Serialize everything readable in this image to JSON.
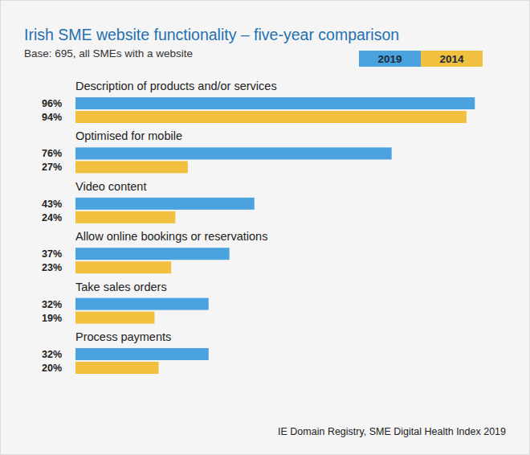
{
  "chart_data": {
    "type": "bar",
    "orientation": "horizontal",
    "title": "Irish SME website functionality – five-year comparison",
    "subtitle": "Base: 695, all SMEs with a website",
    "source": "IE Domain Registry, SME Digital Health Index 2019",
    "categories": [
      "Description of products and/or services",
      "Optimised for mobile",
      "Video content",
      "Allow online bookings or reservations",
      "Take sales orders",
      "Process payments"
    ],
    "series": [
      {
        "name": "2019",
        "color": "#4aa3df",
        "values": [
          96,
          76,
          43,
          37,
          32,
          32
        ],
        "value_labels": [
          "96%",
          "76%",
          "43%",
          "37%",
          "32%",
          "32%"
        ]
      },
      {
        "name": "2014",
        "color": "#f0c03e",
        "values": [
          94,
          27,
          24,
          23,
          19,
          20
        ],
        "value_labels": [
          "94%",
          "27%",
          "24%",
          "23%",
          "19%",
          "20%"
        ]
      }
    ],
    "xlim": [
      0,
      100
    ],
    "tick_labels": false,
    "grid": false,
    "legend": "top-right",
    "data_labels": true
  }
}
